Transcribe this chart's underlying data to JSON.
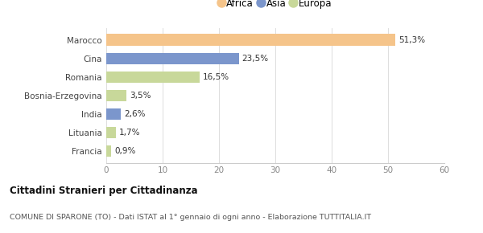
{
  "categories": [
    "Francia",
    "Lituania",
    "India",
    "Bosnia-Erzegovina",
    "Romania",
    "Cina",
    "Marocco"
  ],
  "values": [
    0.9,
    1.7,
    2.6,
    3.5,
    16.5,
    23.5,
    51.3
  ],
  "labels": [
    "0,9%",
    "1,7%",
    "2,6%",
    "3,5%",
    "16,5%",
    "23,5%",
    "51,3%"
  ],
  "colors": [
    "#c8d89a",
    "#c8d89a",
    "#7b96cc",
    "#c8d89a",
    "#c8d89a",
    "#7b96cc",
    "#f5c48a"
  ],
  "legend": [
    {
      "label": "Africa",
      "color": "#f5c48a"
    },
    {
      "label": "Asia",
      "color": "#7b96cc"
    },
    {
      "label": "Europa",
      "color": "#c8d89a"
    }
  ],
  "xlim": [
    0,
    60
  ],
  "xticks": [
    0,
    10,
    20,
    30,
    40,
    50,
    60
  ],
  "title_bold": "Cittadini Stranieri per Cittadinanza",
  "subtitle": "COMUNE DI SPARONE (TO) - Dati ISTAT al 1° gennaio di ogni anno - Elaborazione TUTTITALIA.IT",
  "background_color": "#ffffff",
  "bar_height": 0.62
}
